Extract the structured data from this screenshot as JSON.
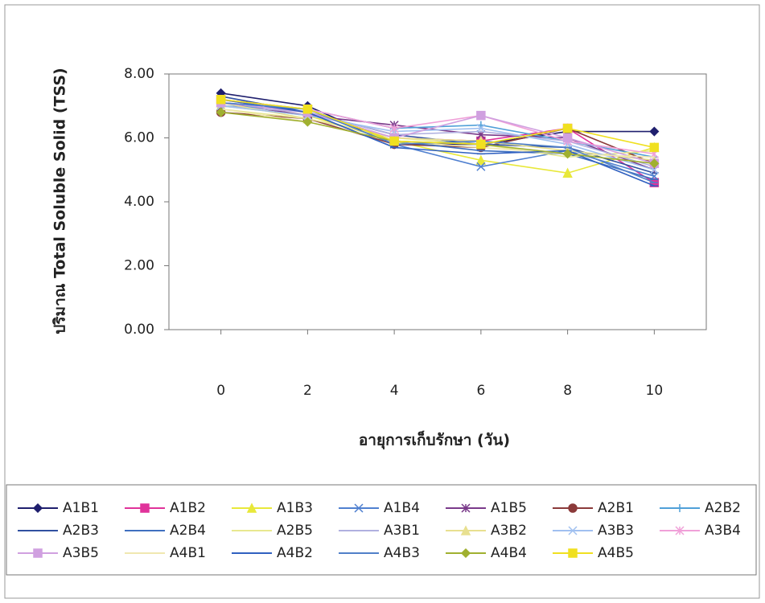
{
  "chart_data": {
    "type": "line",
    "y_label": "ปริมาณ Total Soluble Solid (TSS)",
    "x_label": "อายุการเก็บรักษา (วัน)",
    "x": [
      0,
      2,
      4,
      6,
      8,
      10
    ],
    "xlim": [
      -1.2,
      11.2
    ],
    "xticks": [
      0,
      2,
      4,
      6,
      8,
      10
    ],
    "ylim": [
      0,
      8
    ],
    "yticks": [
      {
        "value": 0,
        "label": "0.00"
      },
      {
        "value": 2,
        "label": "2.00"
      },
      {
        "value": 4,
        "label": "4.00"
      },
      {
        "value": 6,
        "label": "6.00"
      },
      {
        "value": 8,
        "label": "8.00"
      }
    ],
    "grid": false,
    "legend": "bottom",
    "series": [
      {
        "name": "A1B1",
        "color": "#1f1f6e",
        "marker": "diamond",
        "values": [
          7.4,
          7.0,
          5.8,
          5.8,
          6.2,
          6.2
        ]
      },
      {
        "name": "A1B2",
        "color": "#e0339a",
        "marker": "square",
        "values": [
          7.2,
          6.8,
          6.0,
          5.9,
          6.3,
          4.6
        ]
      },
      {
        "name": "A1B3",
        "color": "#e8e83a",
        "marker": "triangle",
        "values": [
          7.0,
          6.7,
          5.9,
          5.3,
          4.9,
          5.7
        ]
      },
      {
        "name": "A1B4",
        "color": "#5080d0",
        "marker": "x",
        "values": [
          7.2,
          6.9,
          5.8,
          5.1,
          5.6,
          4.8
        ]
      },
      {
        "name": "A1B5",
        "color": "#7a3a8a",
        "marker": "star",
        "values": [
          7.1,
          6.7,
          6.4,
          6.1,
          6.0,
          5.0
        ]
      },
      {
        "name": "A2B1",
        "color": "#8b3a3a",
        "marker": "circle",
        "values": [
          6.8,
          6.6,
          5.8,
          5.7,
          6.3,
          5.2
        ]
      },
      {
        "name": "A2B2",
        "color": "#50a0d8",
        "marker": "plus",
        "values": [
          7.0,
          6.9,
          6.3,
          6.4,
          5.9,
          5.4
        ]
      },
      {
        "name": "A2B3",
        "color": "#3050a0",
        "marker": "dash",
        "values": [
          7.3,
          6.8,
          6.1,
          5.8,
          5.7,
          4.9
        ]
      },
      {
        "name": "A2B4",
        "color": "#4070c0",
        "marker": "dash",
        "values": [
          7.1,
          6.9,
          5.9,
          5.6,
          5.5,
          4.7
        ]
      },
      {
        "name": "A2B5",
        "color": "#e8e890",
        "marker": "none",
        "values": [
          6.9,
          6.6,
          6.0,
          5.8,
          5.4,
          5.6
        ]
      },
      {
        "name": "A3B1",
        "color": "#b0b0e0",
        "marker": "none",
        "values": [
          7.0,
          6.8,
          6.1,
          6.2,
          5.9,
          5.1
        ]
      },
      {
        "name": "A3B2",
        "color": "#e8e090",
        "marker": "triangle",
        "values": [
          7.1,
          6.6,
          6.0,
          5.9,
          5.6,
          5.3
        ]
      },
      {
        "name": "A3B3",
        "color": "#a0c0f0",
        "marker": "x",
        "values": [
          7.0,
          6.7,
          6.2,
          6.3,
          5.8,
          5.0
        ]
      },
      {
        "name": "A3B4",
        "color": "#f0a0d8",
        "marker": "star",
        "values": [
          7.2,
          6.9,
          6.3,
          6.7,
          5.9,
          5.5
        ]
      },
      {
        "name": "A3B5",
        "color": "#d0a0e0",
        "marker": "square",
        "values": [
          7.1,
          6.8,
          6.0,
          6.7,
          6.0,
          5.2
        ]
      },
      {
        "name": "A4B1",
        "color": "#f0e8b0",
        "marker": "none",
        "values": [
          6.9,
          6.5,
          5.9,
          5.7,
          5.5,
          5.4
        ]
      },
      {
        "name": "A4B2",
        "color": "#3060c0",
        "marker": "dash",
        "values": [
          7.2,
          6.8,
          5.7,
          5.5,
          5.6,
          4.5
        ]
      },
      {
        "name": "A4B3",
        "color": "#5080c8",
        "marker": "dash",
        "values": [
          7.1,
          6.9,
          5.8,
          5.9,
          5.7,
          4.6
        ]
      },
      {
        "name": "A4B4",
        "color": "#a0b030",
        "marker": "diamond",
        "values": [
          6.8,
          6.5,
          5.9,
          5.8,
          5.5,
          5.2
        ]
      },
      {
        "name": "A4B5",
        "color": "#f0e020",
        "marker": "square",
        "values": [
          7.2,
          6.9,
          5.9,
          5.8,
          6.3,
          5.7
        ]
      }
    ]
  }
}
